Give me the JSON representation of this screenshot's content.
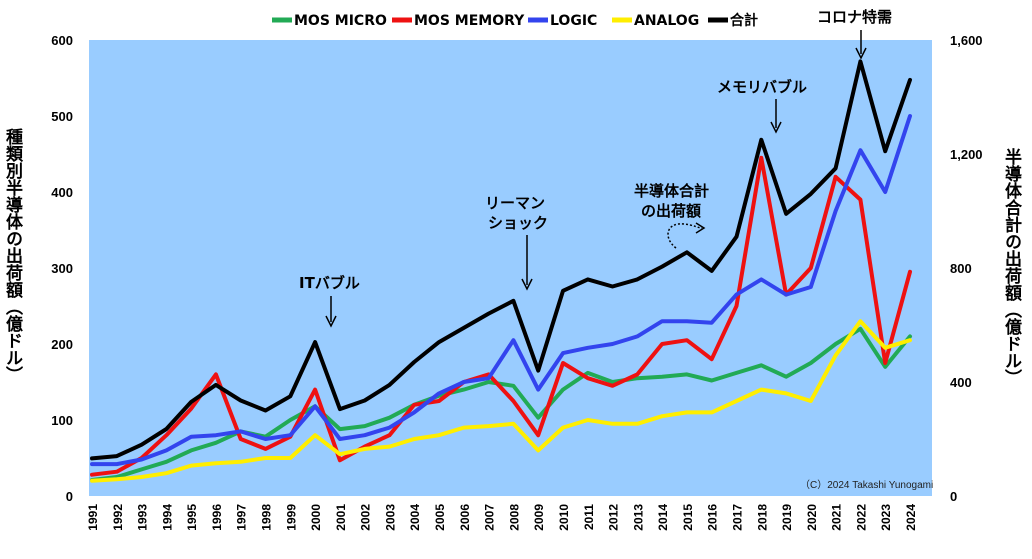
{
  "chart_data": {
    "type": "line",
    "x_start": 1991,
    "x_end": 2024,
    "x_ticks": [
      "1991",
      "1992",
      "1993",
      "1994",
      "1995",
      "1996",
      "1997",
      "1998",
      "1999",
      "2000",
      "2001",
      "2002",
      "2003",
      "2004",
      "2005",
      "2006",
      "2007",
      "2008",
      "2009",
      "2010",
      "2011",
      "2012",
      "2013",
      "2014",
      "2015",
      "2016",
      "2017",
      "2018",
      "2019",
      "2020",
      "2021",
      "2022",
      "2023",
      "2024"
    ],
    "ylabel_left": "種類別半導体の出荷額（億ドル）",
    "ylabel_right": "半導体合計の出荷額（億ドル）",
    "ylim_left": [
      0,
      600
    ],
    "ylim_right": [
      0,
      1600
    ],
    "yticks_left": [
      "0",
      "100",
      "200",
      "300",
      "400",
      "500",
      "600"
    ],
    "yticks_right": [
      "0",
      "400",
      "800",
      "1,200",
      "1,600"
    ],
    "grid": false,
    "legend_position": "top",
    "background_color": "#99ccff",
    "credit": "（C）2024 Takashi Yunogami",
    "series": [
      {
        "name": "MOS MICRO",
        "axis": "left",
        "color": "#22aa55",
        "points": [
          [
            1991,
            21
          ],
          [
            1992,
            25
          ],
          [
            1993,
            35
          ],
          [
            1994,
            45
          ],
          [
            1995,
            60
          ],
          [
            1996,
            70
          ],
          [
            1997,
            85
          ],
          [
            1998,
            78
          ],
          [
            1999,
            100
          ],
          [
            2000,
            118
          ],
          [
            2001,
            88
          ],
          [
            2002,
            92
          ],
          [
            2003,
            103
          ],
          [
            2004,
            120
          ],
          [
            2005,
            132
          ],
          [
            2006,
            140
          ],
          [
            2007,
            150
          ],
          [
            2008,
            145
          ],
          [
            2009,
            103
          ],
          [
            2010,
            140
          ],
          [
            2011,
            162
          ],
          [
            2012,
            150
          ],
          [
            2013,
            155
          ],
          [
            2014,
            157
          ],
          [
            2015,
            160
          ],
          [
            2016,
            152
          ],
          [
            2017,
            162
          ],
          [
            2018,
            172
          ],
          [
            2019,
            157
          ],
          [
            2020,
            175
          ],
          [
            2021,
            200
          ],
          [
            2022,
            220
          ],
          [
            2023,
            170
          ],
          [
            2024,
            210
          ]
        ]
      },
      {
        "name": "MOS MEMORY",
        "axis": "left",
        "color": "#ee1111",
        "points": [
          [
            1991,
            28
          ],
          [
            1992,
            32
          ],
          [
            1993,
            50
          ],
          [
            1994,
            80
          ],
          [
            1995,
            115
          ],
          [
            1996,
            160
          ],
          [
            1997,
            75
          ],
          [
            1998,
            62
          ],
          [
            1999,
            78
          ],
          [
            2000,
            140
          ],
          [
            2001,
            47
          ],
          [
            2002,
            65
          ],
          [
            2003,
            80
          ],
          [
            2004,
            120
          ],
          [
            2005,
            125
          ],
          [
            2006,
            150
          ],
          [
            2007,
            160
          ],
          [
            2008,
            125
          ],
          [
            2009,
            80
          ],
          [
            2010,
            175
          ],
          [
            2011,
            155
          ],
          [
            2012,
            145
          ],
          [
            2013,
            160
          ],
          [
            2014,
            200
          ],
          [
            2015,
            205
          ],
          [
            2016,
            180
          ],
          [
            2017,
            250
          ],
          [
            2018,
            445
          ],
          [
            2019,
            265
          ],
          [
            2020,
            300
          ],
          [
            2021,
            420
          ],
          [
            2022,
            390
          ],
          [
            2023,
            175
          ],
          [
            2024,
            295
          ]
        ]
      },
      {
        "name": "LOGIC",
        "axis": "left",
        "color": "#3344ee",
        "points": [
          [
            1991,
            42
          ],
          [
            1992,
            42
          ],
          [
            1993,
            48
          ],
          [
            1994,
            60
          ],
          [
            1995,
            78
          ],
          [
            1996,
            80
          ],
          [
            1997,
            85
          ],
          [
            1998,
            75
          ],
          [
            1999,
            80
          ],
          [
            2000,
            118
          ],
          [
            2001,
            75
          ],
          [
            2002,
            80
          ],
          [
            2003,
            90
          ],
          [
            2004,
            110
          ],
          [
            2005,
            135
          ],
          [
            2006,
            150
          ],
          [
            2007,
            155
          ],
          [
            2008,
            205
          ],
          [
            2009,
            140
          ],
          [
            2010,
            188
          ],
          [
            2011,
            195
          ],
          [
            2012,
            200
          ],
          [
            2013,
            210
          ],
          [
            2014,
            230
          ],
          [
            2015,
            230
          ],
          [
            2016,
            228
          ],
          [
            2017,
            265
          ],
          [
            2018,
            285
          ],
          [
            2019,
            265
          ],
          [
            2020,
            275
          ],
          [
            2021,
            375
          ],
          [
            2022,
            455
          ],
          [
            2023,
            400
          ],
          [
            2024,
            500
          ]
        ]
      },
      {
        "name": "ANALOG",
        "axis": "left",
        "color": "#ffee00",
        "points": [
          [
            1991,
            20
          ],
          [
            1992,
            22
          ],
          [
            1993,
            25
          ],
          [
            1994,
            30
          ],
          [
            1995,
            40
          ],
          [
            1996,
            43
          ],
          [
            1997,
            45
          ],
          [
            1998,
            50
          ],
          [
            1999,
            50
          ],
          [
            2000,
            80
          ],
          [
            2001,
            55
          ],
          [
            2002,
            62
          ],
          [
            2003,
            65
          ],
          [
            2004,
            75
          ],
          [
            2005,
            80
          ],
          [
            2006,
            90
          ],
          [
            2007,
            92
          ],
          [
            2008,
            95
          ],
          [
            2009,
            60
          ],
          [
            2010,
            90
          ],
          [
            2011,
            100
          ],
          [
            2012,
            95
          ],
          [
            2013,
            95
          ],
          [
            2014,
            105
          ],
          [
            2015,
            110
          ],
          [
            2016,
            110
          ],
          [
            2017,
            125
          ],
          [
            2018,
            140
          ],
          [
            2019,
            135
          ],
          [
            2020,
            125
          ],
          [
            2021,
            185
          ],
          [
            2022,
            230
          ],
          [
            2023,
            195
          ],
          [
            2024,
            205
          ]
        ]
      },
      {
        "name": "合計",
        "axis": "right",
        "color": "#000000",
        "points": [
          [
            1991,
            132
          ],
          [
            1992,
            140
          ],
          [
            1993,
            180
          ],
          [
            1994,
            235
          ],
          [
            1995,
            330
          ],
          [
            1996,
            390
          ],
          [
            1997,
            335
          ],
          [
            1998,
            300
          ],
          [
            1999,
            350
          ],
          [
            2000,
            540
          ],
          [
            2001,
            305
          ],
          [
            2002,
            335
          ],
          [
            2003,
            390
          ],
          [
            2004,
            470
          ],
          [
            2005,
            540
          ],
          [
            2006,
            590
          ],
          [
            2007,
            640
          ],
          [
            2008,
            685
          ],
          [
            2009,
            440
          ],
          [
            2010,
            720
          ],
          [
            2011,
            760
          ],
          [
            2012,
            735
          ],
          [
            2013,
            760
          ],
          [
            2014,
            805
          ],
          [
            2015,
            855
          ],
          [
            2016,
            790
          ],
          [
            2017,
            910
          ],
          [
            2018,
            1250
          ],
          [
            2019,
            990
          ],
          [
            2020,
            1060
          ],
          [
            2021,
            1150
          ],
          [
            2022,
            1525
          ],
          [
            2023,
            1210
          ],
          [
            2024,
            1460
          ]
        ]
      }
    ],
    "annotations": {
      "it_bubble": "ITバブル",
      "lehman_line1": "リーマン",
      "lehman_line2": "ショック",
      "total_line1": "半導体合計",
      "total_line2": "の出荷額",
      "memory_bubble": "メモリバブル",
      "corona": "コロナ特需"
    }
  }
}
